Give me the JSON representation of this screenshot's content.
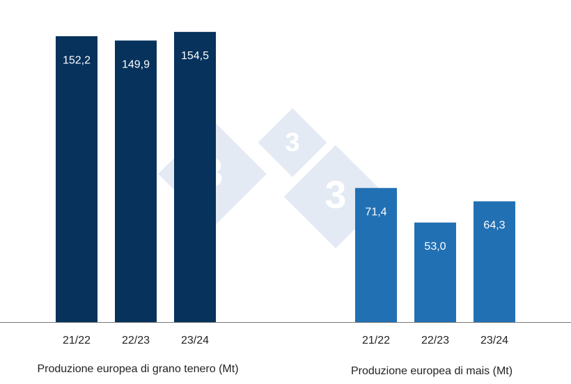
{
  "chart_data": [
    {
      "type": "bar",
      "title": "Produzione europea di grano tenero (Mt)",
      "categories": [
        "21/22",
        "22/23",
        "23/24"
      ],
      "values": [
        152.2,
        149.9,
        154.5
      ],
      "value_labels": [
        "152,2",
        "149,9",
        "154,5"
      ],
      "color": "#06325c",
      "ylim": [
        0,
        160
      ]
    },
    {
      "type": "bar",
      "title": "Produzione europea di mais (Mt)",
      "categories": [
        "21/22",
        "22/23",
        "23/24"
      ],
      "values": [
        71.4,
        53.0,
        64.3
      ],
      "value_labels": [
        "71,4",
        "53,0",
        "64,3"
      ],
      "color": "#2270b4",
      "ylim": [
        0,
        160
      ]
    }
  ],
  "watermark": [
    "3",
    "3",
    "3"
  ]
}
